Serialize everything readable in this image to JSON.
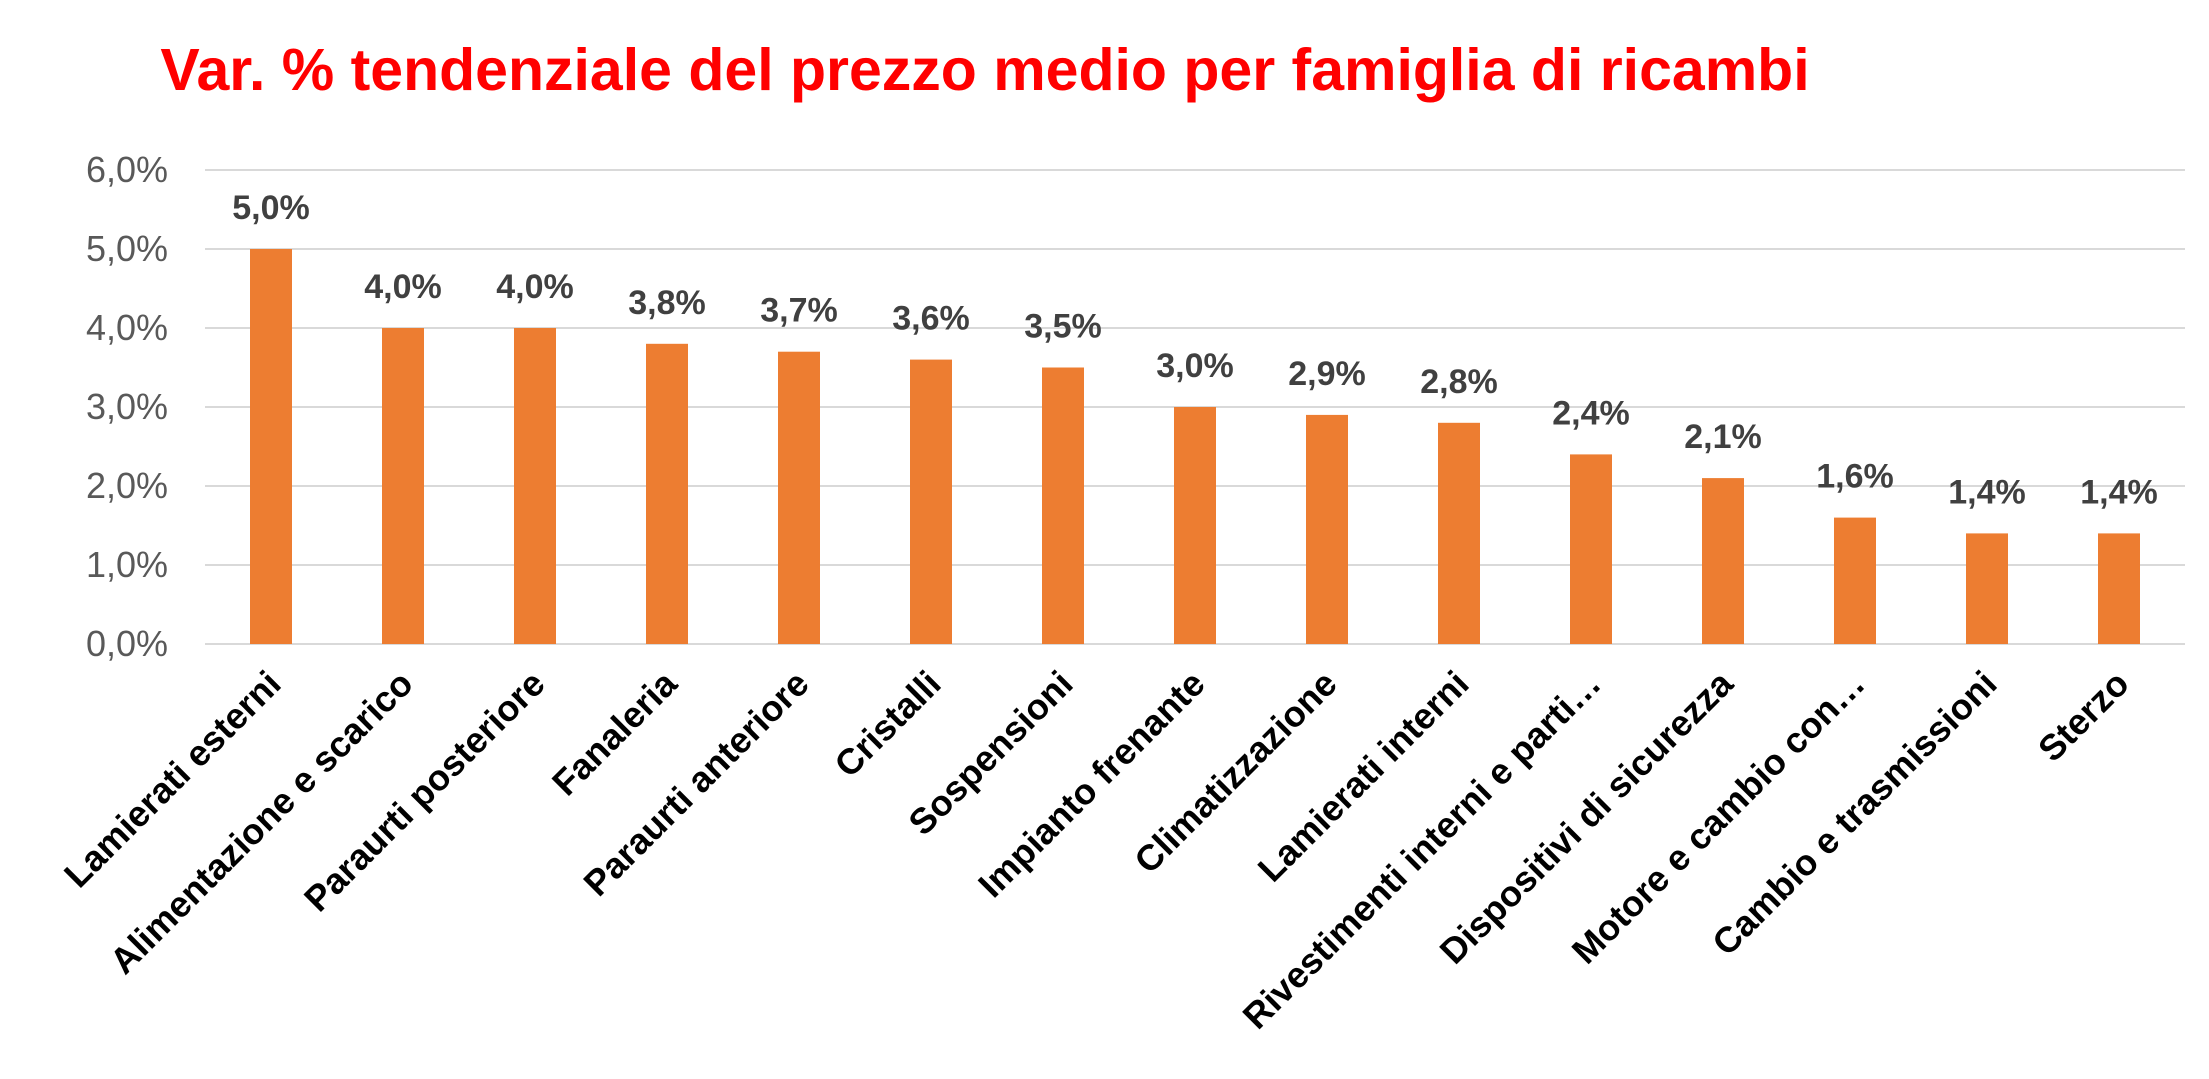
{
  "chart_data": {
    "type": "bar",
    "title": "Var. % tendenziale del prezzo medio per famiglia di ricambi",
    "xlabel": "",
    "ylabel": "",
    "ylim": [
      0,
      6
    ],
    "y_ticks": [
      0,
      1,
      2,
      3,
      4,
      5,
      6
    ],
    "y_tick_labels": [
      "0,0%",
      "1,0%",
      "2,0%",
      "3,0%",
      "4,0%",
      "5,0%",
      "6,0%"
    ],
    "grid": true,
    "legend": "none",
    "bar_color": "#ED7D31",
    "categories": [
      "Lamierati esterni",
      "Alimentazione e scarico",
      "Paraurti posteriore",
      "Fanaleria",
      "Paraurti anteriore",
      "Cristalli",
      "Sospensioni",
      "Impianto frenante",
      "Climatizzazione",
      "Lamierati interni",
      "Rivestimenti interni e parti…",
      "Dispositivi di sicurezza",
      "Motore e cambio con…",
      "Cambio e trasmissioni",
      "Sterzo"
    ],
    "values": [
      5.0,
      4.0,
      4.0,
      3.8,
      3.7,
      3.6,
      3.5,
      3.0,
      2.9,
      2.8,
      2.4,
      2.1,
      1.6,
      1.4,
      1.4
    ],
    "data_labels": [
      "5,0%",
      "4,0%",
      "4,0%",
      "3,8%",
      "3,7%",
      "3,6%",
      "3,5%",
      "3,0%",
      "2,9%",
      "2,8%",
      "2,4%",
      "2,1%",
      "1,6%",
      "1,4%",
      "1,4%"
    ]
  }
}
